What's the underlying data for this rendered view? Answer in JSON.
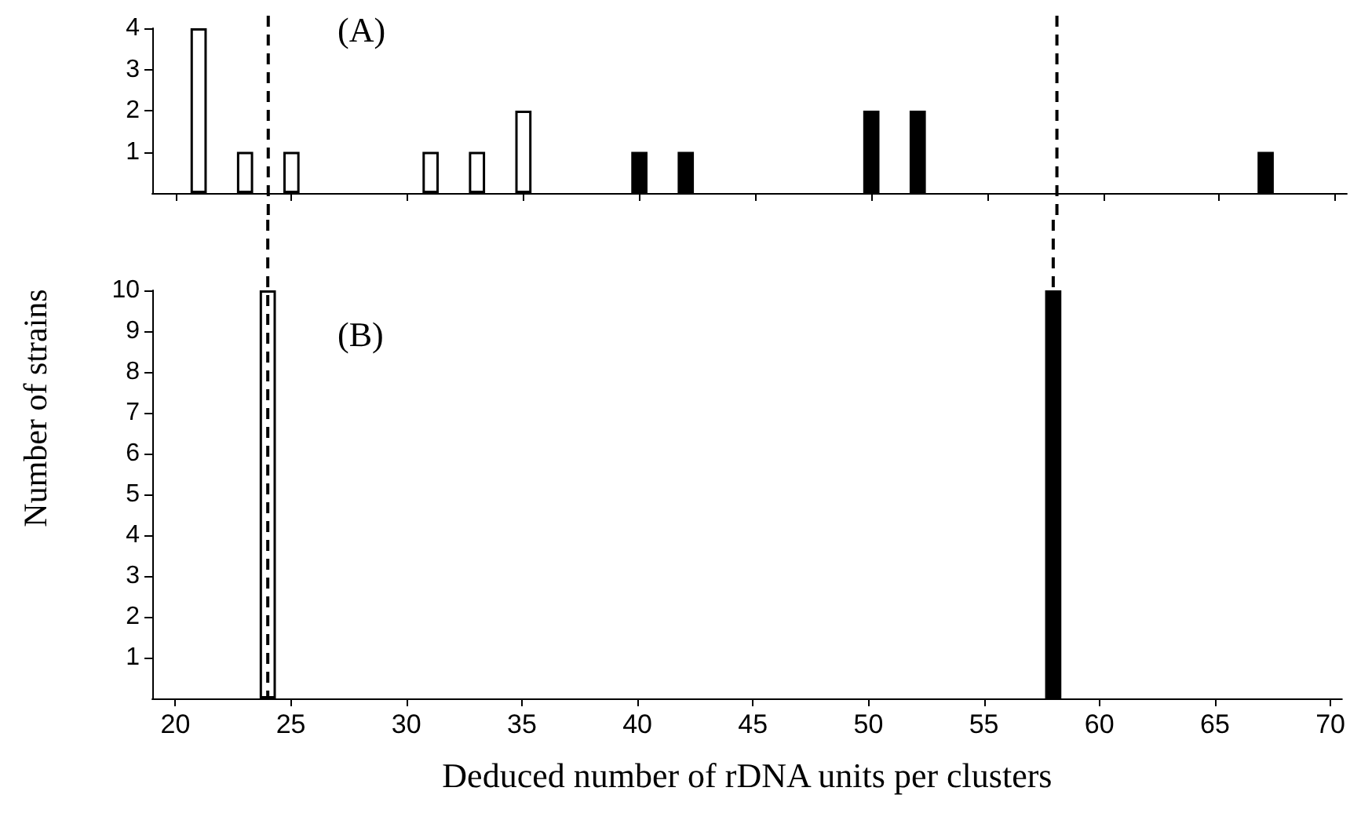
{
  "chart_data": [
    {
      "type": "bar",
      "annotations": [
        "(A)"
      ],
      "xlim": [
        19,
        70.5
      ],
      "xticks": [
        20,
        25,
        30,
        35,
        40,
        45,
        50,
        55,
        60,
        65,
        70
      ],
      "ylim": [
        0,
        4
      ],
      "yticks": [
        1,
        2,
        3,
        4
      ],
      "tick_labels": "y",
      "series": [
        {
          "color": "#ffffff",
          "x": [
            21,
            23,
            25,
            31,
            33,
            35
          ],
          "values": [
            4,
            1,
            1,
            1,
            1,
            2
          ]
        },
        {
          "color": "#000000",
          "x": [
            40,
            42,
            50,
            52,
            67
          ],
          "values": [
            1,
            1,
            2,
            2,
            1
          ]
        }
      ],
      "ref_lines": [
        {
          "axis": "x",
          "value": 24,
          "line_style": "dashed"
        },
        {
          "axis": "x",
          "value": 58,
          "line_style": "dashed"
        }
      ]
    },
    {
      "type": "bar",
      "annotations": [
        "(B)"
      ],
      "xlabel": "Deduced number of rDNA units per clusters",
      "ylabel": "Number of strains",
      "xlim": [
        19,
        70.5
      ],
      "xticks": [
        20,
        25,
        30,
        35,
        40,
        45,
        50,
        55,
        60,
        65,
        70
      ],
      "ylim": [
        0,
        10
      ],
      "yticks": [
        1,
        2,
        3,
        4,
        5,
        6,
        7,
        8,
        9,
        10
      ],
      "series": [
        {
          "color": "#ffffff",
          "x": [
            24
          ],
          "values": [
            10
          ]
        },
        {
          "color": "#000000",
          "x": [
            58
          ],
          "values": [
            10
          ]
        }
      ],
      "ref_lines": [
        {
          "axis": "x",
          "value": 24,
          "line_style": "dashed"
        },
        {
          "axis": "x",
          "value": 58,
          "line_style": "dashed"
        }
      ]
    }
  ]
}
